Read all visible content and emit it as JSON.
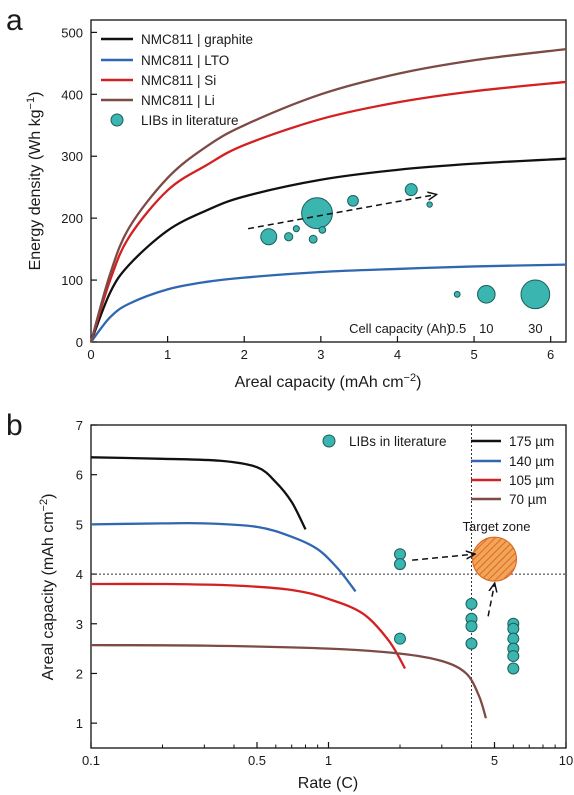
{
  "colors": {
    "graphite": "#111111",
    "lto": "#2f67b1",
    "si": "#d42020",
    "li": "#7d4a46",
    "bubble": "#3ab5b0",
    "bubble_stroke": "#1c5e5b",
    "t175": "#111111",
    "t140": "#2f67b1",
    "t105": "#d42020",
    "t70": "#7d4a46",
    "target": "#f2a458",
    "target_hatch": "#d9641e"
  },
  "chart_data": [
    {
      "panel": "a",
      "type": "line",
      "xlabel": "Areal capacity (mAh cm",
      "xlabel_sup": "−2",
      "xlabel_tail": ")",
      "ylabel": "Energy density (Wh kg",
      "ylabel_sup": "−1",
      "ylabel_tail": ")",
      "xlim": [
        0,
        6.2
      ],
      "ylim": [
        0,
        520
      ],
      "xticks": [
        "0",
        "1",
        "2",
        "3",
        "4",
        "5",
        "6"
      ],
      "yticks": [
        "0",
        "100",
        "200",
        "300",
        "400",
        "500"
      ],
      "series": [
        {
          "name": "NMC811 | graphite",
          "color_key": "graphite",
          "x": [
            0,
            0.25,
            0.5,
            1,
            1.5,
            2,
            3,
            4,
            5,
            6.2
          ],
          "y": [
            0,
            80,
            125,
            180,
            212,
            235,
            262,
            278,
            288,
            296
          ]
        },
        {
          "name": "NMC811 | LTO",
          "color_key": "lto",
          "x": [
            0,
            0.25,
            0.5,
            1,
            1.5,
            2,
            3,
            4,
            5,
            6.2
          ],
          "y": [
            0,
            40,
            62,
            85,
            97,
            104,
            113,
            118,
            122,
            125
          ]
        },
        {
          "name": "NMC811 | Si",
          "color_key": "si",
          "x": [
            0,
            0.25,
            0.5,
            1,
            1.5,
            2,
            3,
            4,
            5,
            6.2
          ],
          "y": [
            0,
            100,
            170,
            245,
            285,
            318,
            360,
            387,
            405,
            420
          ]
        },
        {
          "name": "NMC811 | Li",
          "color_key": "li",
          "x": [
            0,
            0.25,
            0.5,
            1,
            1.5,
            2,
            3,
            4,
            5,
            6.2
          ],
          "y": [
            0,
            110,
            185,
            265,
            315,
            350,
            400,
            433,
            455,
            473
          ]
        }
      ],
      "bubbles_series_name": "LIBs in literature",
      "bubbles": [
        {
          "x": 2.32,
          "y": 170,
          "ah": 8
        },
        {
          "x": 2.58,
          "y": 170,
          "ah": 1.5
        },
        {
          "x": 2.68,
          "y": 183,
          "ah": 0.6
        },
        {
          "x": 2.95,
          "y": 208,
          "ah": 35
        },
        {
          "x": 2.9,
          "y": 166,
          "ah": 1.3
        },
        {
          "x": 3.02,
          "y": 181,
          "ah": 0.8
        },
        {
          "x": 3.42,
          "y": 228,
          "ah": 3
        },
        {
          "x": 4.18,
          "y": 246,
          "ah": 4
        },
        {
          "x": 4.42,
          "y": 222,
          "ah": 0.4
        }
      ],
      "trend_arrow": {
        "from": [
          2.05,
          183
        ],
        "to": [
          4.5,
          238
        ]
      },
      "size_key": {
        "label": "Cell capacity (Ah)",
        "entries": [
          {
            "label": "0.5",
            "ah": 0.5,
            "x": 4.78,
            "y": 77
          },
          {
            "label": "10",
            "ah": 10,
            "x": 5.16,
            "y": 77
          },
          {
            "label": "30",
            "ah": 30,
            "x": 5.8,
            "y": 77
          }
        ]
      }
    },
    {
      "panel": "b",
      "type": "line",
      "xlabel": "Rate (C)",
      "ylabel": "Areal capacity (mAh cm",
      "ylabel_sup": "−2",
      "ylabel_tail": ")",
      "xscale": "log",
      "xlim": [
        0.1,
        10
      ],
      "ylim": [
        0.5,
        7
      ],
      "xticks": [
        {
          "v": 0.1,
          "label": "0.1"
        },
        {
          "v": 0.5,
          "label": "0.5"
        },
        {
          "v": 1,
          "label": "1"
        },
        {
          "v": 5,
          "label": "5"
        },
        {
          "v": 10,
          "label": "10"
        }
      ],
      "yticks": [
        "1",
        "2",
        "3",
        "4",
        "5",
        "6",
        "7"
      ],
      "reference_lines": {
        "x": 4,
        "y": 4
      },
      "series": [
        {
          "name": "175 µm",
          "color_key": "t175",
          "x": [
            0.1,
            0.2,
            0.35,
            0.5,
            0.6,
            0.7,
            0.8
          ],
          "y": [
            6.35,
            6.32,
            6.28,
            6.15,
            5.85,
            5.45,
            4.9
          ]
        },
        {
          "name": "140 µm",
          "color_key": "t140",
          "x": [
            0.1,
            0.2,
            0.3,
            0.5,
            0.7,
            0.9,
            1.1,
            1.3
          ],
          "y": [
            5.0,
            5.02,
            5.02,
            4.95,
            4.75,
            4.5,
            4.1,
            3.65
          ]
        },
        {
          "name": "105 µm",
          "color_key": "t105",
          "x": [
            0.1,
            0.2,
            0.4,
            0.7,
            1.0,
            1.4,
            1.8,
            2.1
          ],
          "y": [
            3.8,
            3.8,
            3.77,
            3.68,
            3.5,
            3.2,
            2.65,
            2.1
          ]
        },
        {
          "name": "70 µm",
          "color_key": "t70",
          "x": [
            0.1,
            0.3,
            1.0,
            2.0,
            3.0,
            3.8,
            4.3,
            4.6
          ],
          "y": [
            2.57,
            2.56,
            2.5,
            2.4,
            2.25,
            2.0,
            1.55,
            1.1
          ]
        }
      ],
      "points_series_name": "LIBs in literature",
      "points": [
        {
          "x": 2,
          "y": 4.4
        },
        {
          "x": 2,
          "y": 4.2
        },
        {
          "x": 2,
          "y": 2.7
        },
        {
          "x": 4,
          "y": 3.4
        },
        {
          "x": 4,
          "y": 3.1
        },
        {
          "x": 4,
          "y": 2.95
        },
        {
          "x": 4,
          "y": 2.6
        },
        {
          "x": 6,
          "y": 3.0
        },
        {
          "x": 6,
          "y": 2.9
        },
        {
          "x": 6,
          "y": 2.7
        },
        {
          "x": 6,
          "y": 2.5
        },
        {
          "x": 6,
          "y": 2.35
        },
        {
          "x": 6,
          "y": 2.1
        }
      ],
      "target_zone": {
        "label": "Target zone",
        "x": 5,
        "y": 4.3
      },
      "arrows": [
        {
          "from": [
            2.25,
            4.28
          ],
          "to": [
            4.1,
            4.4
          ]
        },
        {
          "from": [
            4.7,
            3.15
          ],
          "to": [
            5.0,
            3.8
          ]
        }
      ]
    }
  ]
}
